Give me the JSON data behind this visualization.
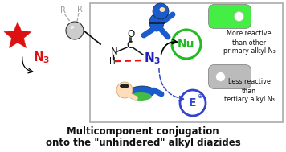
{
  "title_line1": "Multicomponent conjugation",
  "title_line2": "onto the \"unhindered\" alkyl diazides",
  "title_fontsize": 8.5,
  "bg_color": "#ffffff",
  "nu_circle_color": "#22bb22",
  "e_circle_color": "#3344cc",
  "star_color": "#dd1111",
  "n3_red_color": "#dd1111",
  "n3_blue_color": "#2222bb",
  "r_label_color": "#999999",
  "toggle_on_color": "#44ee44",
  "toggle_off_color": "#bbbbbb",
  "text_more_reactive": [
    "More reactive",
    "than other",
    "primary alkyl N₃"
  ],
  "text_less_reactive": [
    "Less reactive",
    "than",
    "tertiary alkyl N₃"
  ],
  "dashed_red_color": "#ee1111",
  "dashed_blue_color": "#3344cc",
  "box_edge_color": "#aaaaaa",
  "amide_color": "#111111",
  "sphere_face": "#cccccc",
  "sphere_edge": "#333333"
}
